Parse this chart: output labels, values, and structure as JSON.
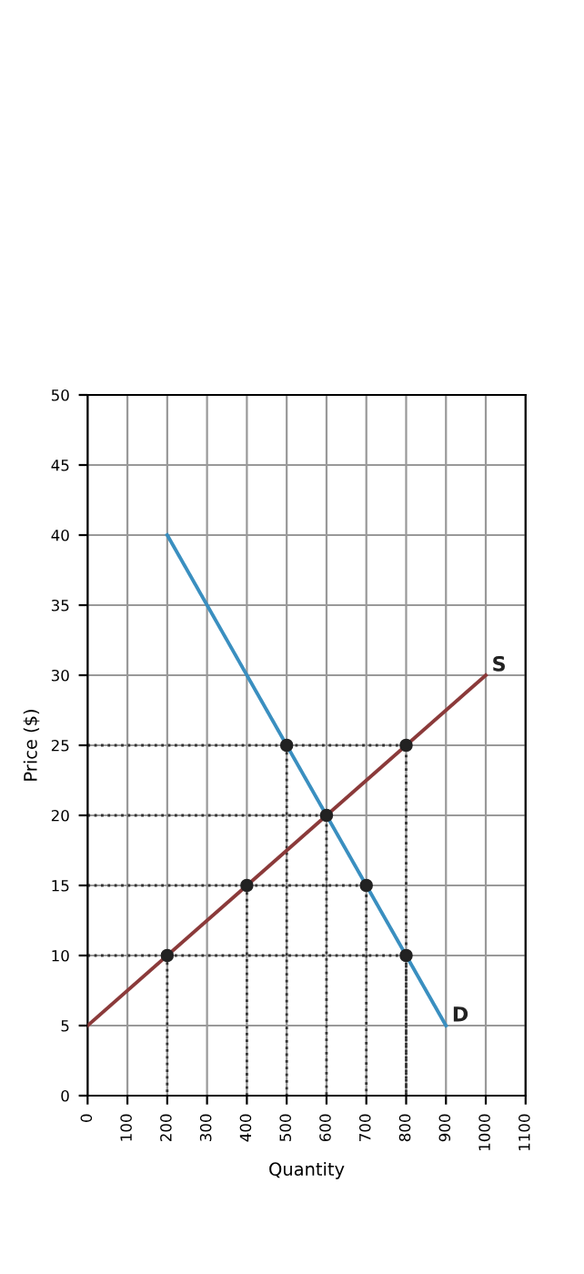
{
  "chart_data": {
    "type": "line",
    "xlabel": "Quantity",
    "ylabel": "Price ($)",
    "xlim": [
      0,
      1100
    ],
    "ylim": [
      0,
      50
    ],
    "xticks": [
      0,
      100,
      200,
      300,
      400,
      500,
      600,
      700,
      800,
      900,
      1000,
      1100
    ],
    "yticks": [
      0,
      5,
      10,
      15,
      20,
      25,
      30,
      35,
      40,
      45,
      50
    ],
    "grid": true,
    "legend": false,
    "series": [
      {
        "name": "S",
        "color": "#8b3a3a",
        "x": [
          0,
          1000
        ],
        "values": [
          5,
          30
        ]
      },
      {
        "name": "D",
        "color": "#3a8fc0",
        "x": [
          200,
          900
        ],
        "values": [
          40,
          5
        ]
      },
      {
        "line_style": "dotted",
        "color": "#333333",
        "x": [
          0,
          800,
          800
        ],
        "values": [
          25,
          25,
          0
        ]
      },
      {
        "line_style": "dotted",
        "color": "#333333",
        "x": [
          0,
          600,
          600
        ],
        "values": [
          20,
          20,
          0
        ]
      },
      {
        "line_style": "dotted",
        "color": "#333333",
        "x": [
          0,
          700,
          700
        ],
        "values": [
          15,
          15,
          0
        ]
      },
      {
        "line_style": "dotted",
        "color": "#333333",
        "x": [
          0,
          800,
          800
        ],
        "values": [
          10,
          10,
          0
        ]
      },
      {
        "line_style": "dotted",
        "color": "#333333",
        "x": [
          500,
          500
        ],
        "values": [
          25,
          0
        ]
      },
      {
        "line_style": "dotted",
        "color": "#333333",
        "x": [
          400,
          400
        ],
        "values": [
          15,
          0
        ]
      },
      {
        "line_style": "dotted",
        "color": "#333333",
        "x": [
          200,
          200
        ],
        "values": [
          10,
          0
        ]
      },
      {
        "type": "scatter",
        "color": "#222222",
        "marker": "circle",
        "x": [
          200,
          400,
          600,
          800,
          500,
          700,
          800
        ],
        "values": [
          10,
          15,
          20,
          25,
          25,
          15,
          10
        ]
      }
    ]
  }
}
